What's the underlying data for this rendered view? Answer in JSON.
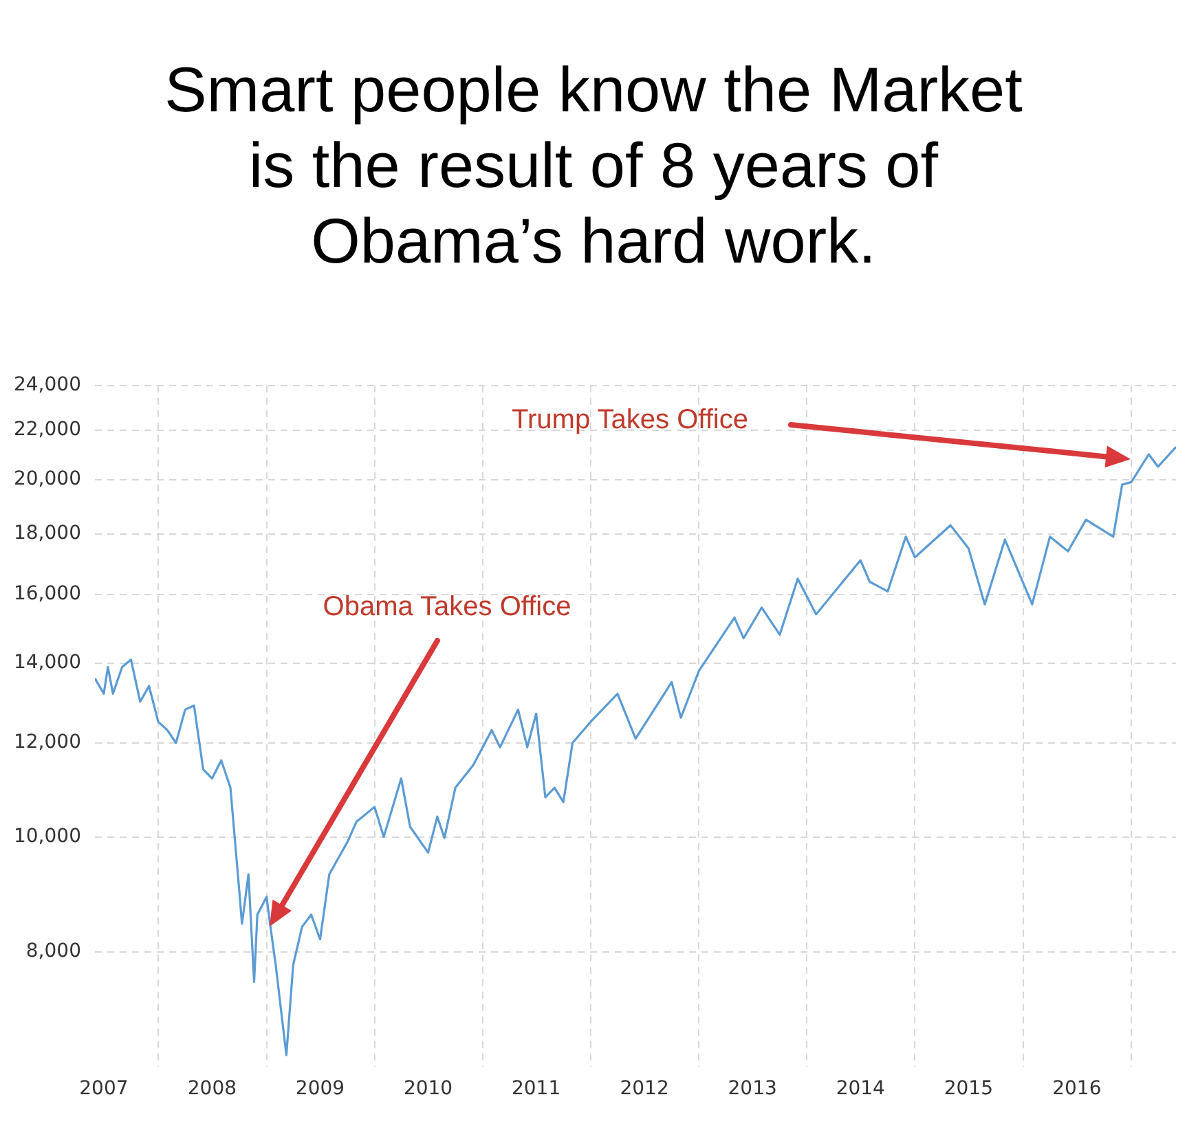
{
  "chart_data": {
    "type": "line",
    "title": "Smart people know the Market is the result of 8 years of Obama’s hard work.",
    "x": [
      "2007-06",
      "2007-07",
      "2007-07-15",
      "2007-08",
      "2007-09",
      "2007-10",
      "2007-11",
      "2007-12",
      "2008-01",
      "2008-02",
      "2008-03",
      "2008-04",
      "2008-05",
      "2008-06",
      "2008-07",
      "2008-08",
      "2008-09",
      "2008-10",
      "2008-10-10",
      "2008-11",
      "2008-11-20",
      "2008-12",
      "2009-01",
      "2009-01-20",
      "2009-02",
      "2009-03-09",
      "2009-04",
      "2009-05",
      "2009-06",
      "2009-07",
      "2009-08",
      "2009-09",
      "2009-10",
      "2009-11",
      "2010-01",
      "2010-02",
      "2010-04",
      "2010-05",
      "2010-07",
      "2010-08",
      "2010-08-25",
      "2010-10",
      "2010-12",
      "2011-02",
      "2011-03",
      "2011-05",
      "2011-06",
      "2011-07",
      "2011-08",
      "2011-09",
      "2011-10",
      "2011-11",
      "2012-01",
      "2012-04",
      "2012-06",
      "2012-10",
      "2012-11",
      "2013-01",
      "2013-05",
      "2013-06",
      "2013-08",
      "2013-10",
      "2013-12",
      "2014-02",
      "2014-07",
      "2014-08",
      "2014-10",
      "2014-12",
      "2015-01",
      "2015-05",
      "2015-07",
      "2015-08-25",
      "2015-11",
      "2016-02",
      "2016-04",
      "2016-06",
      "2016-08",
      "2016-11",
      "2016-12",
      "2017-01",
      "2017-03",
      "2017-04",
      "2017-06"
    ],
    "series": [
      {
        "color": "#5b9bd5",
        "values": [
          13600,
          13200,
          13900,
          13200,
          13900,
          14100,
          13000,
          13400,
          12500,
          12300,
          12000,
          12800,
          12900,
          11400,
          11200,
          11600,
          11000,
          9000,
          8450,
          9300,
          7550,
          8600,
          8900,
          8200,
          7800,
          6550,
          7800,
          8400,
          8600,
          8200,
          9300,
          9600,
          9900,
          10300,
          10600,
          10000,
          11200,
          10200,
          9700,
          10400,
          9980,
          11000,
          11500,
          12300,
          11900,
          12800,
          11900,
          12700,
          10800,
          11000,
          10700,
          12000,
          12500,
          13200,
          12100,
          13500,
          12600,
          13800,
          15300,
          14700,
          15600,
          14800,
          16500,
          15400,
          17100,
          16400,
          16100,
          17900,
          17200,
          18300,
          17500,
          15700,
          17800,
          15700,
          17900,
          17400,
          18500,
          17900,
          19800,
          19900,
          21000,
          20500,
          21300
        ]
      }
    ],
    "xlim": [
      "2007-06",
      "2017-06"
    ],
    "xticks": [
      {
        "value": "2007-07",
        "label": "2007"
      },
      {
        "value": "2008-01",
        "label": null
      },
      {
        "value": "2008-07",
        "label": "2008"
      },
      {
        "value": "2009-01",
        "label": null
      },
      {
        "value": "2009-07",
        "label": "2009"
      },
      {
        "value": "2010-01",
        "label": null
      },
      {
        "value": "2010-07",
        "label": "2010"
      },
      {
        "value": "2011-01",
        "label": null
      },
      {
        "value": "2011-07",
        "label": "2011"
      },
      {
        "value": "2012-01",
        "label": null
      },
      {
        "value": "2012-07",
        "label": "2012"
      },
      {
        "value": "2013-01",
        "label": null
      },
      {
        "value": "2013-07",
        "label": "2013"
      },
      {
        "value": "2014-01",
        "label": null
      },
      {
        "value": "2014-07",
        "label": "2014"
      },
      {
        "value": "2015-01",
        "label": null
      },
      {
        "value": "2015-07",
        "label": "2015"
      },
      {
        "value": "2016-01",
        "label": null
      },
      {
        "value": "2016-07",
        "label": "2016"
      },
      {
        "value": "2017-01",
        "label": null
      }
    ],
    "ylim": [
      6400,
      24000
    ],
    "yticks": [
      {
        "value": 8000,
        "label": "8,000"
      },
      {
        "value": 10000,
        "label": "10,000"
      },
      {
        "value": 12000,
        "label": "12,000"
      },
      {
        "value": 14000,
        "label": "14,000"
      },
      {
        "value": 16000,
        "label": "16,000"
      },
      {
        "value": 18000,
        "label": "18,000"
      },
      {
        "value": 20000,
        "label": "20,000"
      },
      {
        "value": 22000,
        "label": "22,000"
      },
      {
        "value": 24000,
        "label": "24,000"
      }
    ],
    "log": "y",
    "grid": true,
    "legend": false,
    "marker": "none",
    "line_style": "solid",
    "annotations": [
      "Obama Takes Office",
      "Trump Takes Office"
    ]
  }
}
